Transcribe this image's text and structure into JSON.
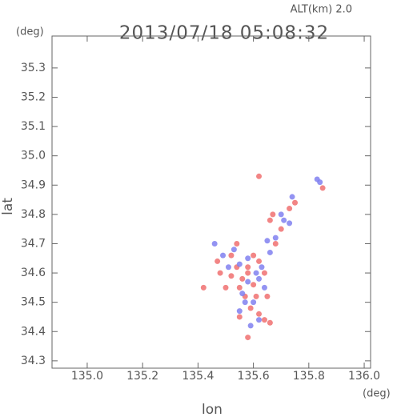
{
  "chart_data": {
    "type": "scatter",
    "altitude_label": "ALT(km) 2.0",
    "title": "2013/07/18 05:08:32",
    "y_unit": "(deg)",
    "x_unit": "(deg)",
    "xlabel": "lon",
    "ylabel": "lat",
    "xlim": [
      134.873,
      136.023
    ],
    "ylim": [
      34.275,
      35.409
    ],
    "xticks": [
      {
        "value": 135,
        "label": "135.0"
      },
      135.2,
      135.4,
      135.6,
      135.8,
      {
        "value": 136,
        "label": "136.0"
      }
    ],
    "yticks": [
      34.3,
      34.4,
      34.5,
      34.6,
      34.7,
      34.8,
      34.9,
      {
        "value": 35,
        "label": "35.0"
      },
      35.1,
      35.2,
      35.3
    ],
    "grid": false,
    "series": [
      {
        "color": "#f07070",
        "x": [
          135.52,
          135.54,
          135.56,
          135.58,
          135.6,
          135.57,
          135.59,
          135.62,
          135.64,
          135.66,
          135.55,
          135.52,
          135.47,
          135.48,
          135.62,
          135.64,
          135.68,
          135.7,
          135.66,
          135.67,
          135.75,
          135.73,
          135.85,
          135.62,
          135.58,
          135.54,
          135.6,
          135.61,
          135.55,
          135.58,
          135.5,
          135.65,
          135.42
        ],
        "values": [
          34.66,
          34.62,
          34.58,
          34.6,
          34.56,
          34.52,
          34.48,
          34.46,
          34.44,
          34.43,
          34.55,
          34.59,
          34.64,
          34.6,
          34.64,
          34.6,
          34.7,
          34.75,
          34.78,
          34.8,
          34.84,
          34.82,
          34.89,
          34.93,
          34.62,
          34.7,
          34.66,
          34.52,
          34.45,
          34.38,
          34.55,
          34.52,
          34.55
        ]
      },
      {
        "color": "#8080f0",
        "x": [
          135.53,
          135.55,
          135.58,
          135.61,
          135.63,
          135.66,
          135.68,
          135.71,
          135.73,
          135.84,
          135.83,
          135.57,
          135.6,
          135.62,
          135.56,
          135.51,
          135.49,
          135.64,
          135.59,
          135.7,
          135.74,
          135.65,
          135.55,
          135.58,
          135.46,
          135.62
        ],
        "values": [
          34.68,
          34.63,
          34.57,
          34.6,
          34.62,
          34.67,
          34.72,
          34.78,
          34.77,
          34.91,
          34.92,
          34.5,
          34.5,
          34.44,
          34.53,
          34.62,
          34.66,
          34.55,
          34.42,
          34.8,
          34.86,
          34.71,
          34.47,
          34.65,
          34.7,
          34.58
        ]
      }
    ]
  }
}
